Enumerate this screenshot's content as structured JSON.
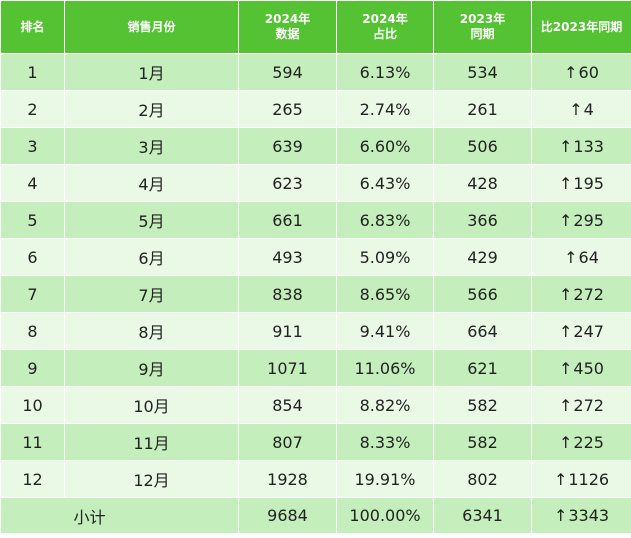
{
  "headers": {
    "rank": "排名",
    "month": "销售月份",
    "y2024_line1": "2024年",
    "y2024_line2": "数据",
    "share_line1": "2024年",
    "share_line2": "占比",
    "y2023_line1": "2023年",
    "y2023_line2": "同期",
    "diff": "比2023年同期"
  },
  "rows": [
    {
      "rank": "1",
      "month": "1月",
      "v2024": "594",
      "share": "6.13%",
      "v2023": "534",
      "arrow": "↑",
      "diff": "60"
    },
    {
      "rank": "2",
      "month": "2月",
      "v2024": "265",
      "share": "2.74%",
      "v2023": "261",
      "arrow": "↑",
      "diff": "4"
    },
    {
      "rank": "3",
      "month": "3月",
      "v2024": "639",
      "share": "6.60%",
      "v2023": "506",
      "arrow": "↑",
      "diff": "133"
    },
    {
      "rank": "4",
      "month": "4月",
      "v2024": "623",
      "share": "6.43%",
      "v2023": "428",
      "arrow": "↑",
      "diff": "195"
    },
    {
      "rank": "5",
      "month": "5月",
      "v2024": "661",
      "share": "6.83%",
      "v2023": "366",
      "arrow": "↑",
      "diff": "295"
    },
    {
      "rank": "6",
      "month": "6月",
      "v2024": "493",
      "share": "5.09%",
      "v2023": "429",
      "arrow": "↑",
      "diff": "64"
    },
    {
      "rank": "7",
      "month": "7月",
      "v2024": "838",
      "share": "8.65%",
      "v2023": "566",
      "arrow": "↑",
      "diff": "272"
    },
    {
      "rank": "8",
      "month": "8月",
      "v2024": "911",
      "share": "9.41%",
      "v2023": "664",
      "arrow": "↑",
      "diff": "247"
    },
    {
      "rank": "9",
      "month": "9月",
      "v2024": "1071",
      "share": "11.06%",
      "v2023": "621",
      "arrow": "↑",
      "diff": "450"
    },
    {
      "rank": "10",
      "month": "10月",
      "v2024": "854",
      "share": "8.82%",
      "v2023": "582",
      "arrow": "↑",
      "diff": "272"
    },
    {
      "rank": "11",
      "month": "11月",
      "v2024": "807",
      "share": "8.33%",
      "v2023": "582",
      "arrow": "↑",
      "diff": "225"
    },
    {
      "rank": "12",
      "month": "12月",
      "v2024": "1928",
      "share": "19.91%",
      "v2023": "802",
      "arrow": "↑",
      "diff": "1126"
    }
  ],
  "total": {
    "label": "小计",
    "v2024": "9684",
    "share": "100.00%",
    "v2023": "6341",
    "arrow": "↑",
    "diff": "3343"
  },
  "colors": {
    "header_bg": "#54c232",
    "row_dark": "#c4eebb",
    "row_light": "#eaf8e6"
  }
}
